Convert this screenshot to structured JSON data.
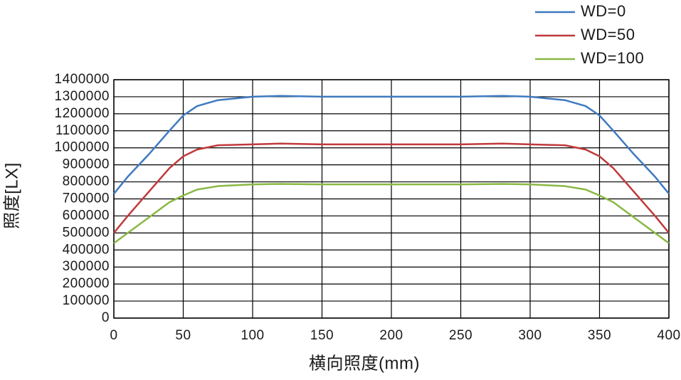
{
  "chart_data": {
    "type": "line",
    "x_label": "横向照度(mm)",
    "y_label": "照度[LX]",
    "x": [
      0,
      10,
      25,
      40,
      50,
      60,
      75,
      100,
      120,
      150,
      200,
      250,
      280,
      300,
      325,
      340,
      350,
      360,
      375,
      390,
      400
    ],
    "series": [
      {
        "name": "WD=0",
        "color": "#3f7ac0",
        "values": [
          730000,
          830000,
          960000,
          1100000,
          1190000,
          1245000,
          1280000,
          1300000,
          1305000,
          1300000,
          1300000,
          1300000,
          1305000,
          1300000,
          1280000,
          1245000,
          1190000,
          1100000,
          960000,
          830000,
          730000
        ]
      },
      {
        "name": "WD=50",
        "color": "#c0393b",
        "values": [
          500000,
          600000,
          740000,
          880000,
          950000,
          990000,
          1015000,
          1020000,
          1025000,
          1020000,
          1020000,
          1020000,
          1025000,
          1020000,
          1015000,
          990000,
          950000,
          880000,
          740000,
          600000,
          500000
        ]
      },
      {
        "name": "WD=100",
        "color": "#8ab843",
        "values": [
          440000,
          500000,
          590000,
          680000,
          720000,
          755000,
          775000,
          785000,
          788000,
          785000,
          785000,
          785000,
          788000,
          785000,
          775000,
          755000,
          720000,
          680000,
          590000,
          500000,
          440000
        ]
      }
    ],
    "xlim": [
      0,
      400
    ],
    "xticks": [
      0,
      50,
      100,
      150,
      200,
      250,
      300,
      350,
      400
    ],
    "ylim": [
      0,
      1400000
    ],
    "yticks": [
      0,
      100000,
      200000,
      300000,
      400000,
      500000,
      600000,
      700000,
      800000,
      900000,
      1000000,
      1100000,
      1200000,
      1300000,
      1400000
    ],
    "grid": true,
    "legend": "top-right"
  }
}
